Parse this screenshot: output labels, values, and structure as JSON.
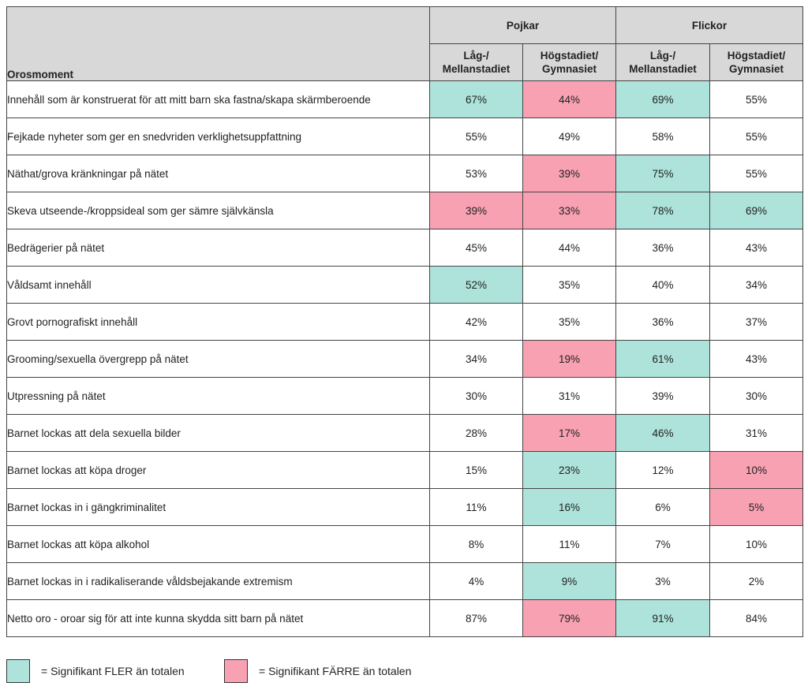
{
  "header": {
    "orosmoment": "Orosmoment",
    "groups": [
      "Pojkar",
      "Flickor"
    ],
    "subheaders": [
      [
        "Låg-/",
        "Mellanstadiet"
      ],
      [
        "Högstadiet/",
        "Gymnasiet"
      ],
      [
        "Låg-/",
        "Mellanstadiet"
      ],
      [
        "Högstadiet/",
        "Gymnasiet"
      ]
    ]
  },
  "colors": {
    "more": "#ade3da",
    "fewer": "#f7a1b2"
  },
  "rows": [
    {
      "label": "Innehåll som är konstruerat för att mitt barn ska fastna/skapa skärmberoende",
      "values": [
        "67%",
        "44%",
        "69%",
        "55%"
      ],
      "sig": [
        "more",
        "fewer",
        "more",
        ""
      ]
    },
    {
      "label": "Fejkade nyheter som ger en snedvriden verklighetsuppfattning",
      "values": [
        "55%",
        "49%",
        "58%",
        "55%"
      ],
      "sig": [
        "",
        "",
        "",
        ""
      ]
    },
    {
      "label": "Näthat/grova kränkningar på nätet",
      "values": [
        "53%",
        "39%",
        "75%",
        "55%"
      ],
      "sig": [
        "",
        "fewer",
        "more",
        ""
      ]
    },
    {
      "label": "Skeva utseende-/kroppsideal som ger sämre självkänsla",
      "values": [
        "39%",
        "33%",
        "78%",
        "69%"
      ],
      "sig": [
        "fewer",
        "fewer",
        "more",
        "more"
      ]
    },
    {
      "label": "Bedrägerier på nätet",
      "values": [
        "45%",
        "44%",
        "36%",
        "43%"
      ],
      "sig": [
        "",
        "",
        "",
        ""
      ]
    },
    {
      "label": "Våldsamt innehåll",
      "values": [
        "52%",
        "35%",
        "40%",
        "34%"
      ],
      "sig": [
        "more",
        "",
        "",
        ""
      ]
    },
    {
      "label": "Grovt pornografiskt innehåll",
      "values": [
        "42%",
        "35%",
        "36%",
        "37%"
      ],
      "sig": [
        "",
        "",
        "",
        ""
      ]
    },
    {
      "label": "Grooming/sexuella övergrepp på nätet",
      "values": [
        "34%",
        "19%",
        "61%",
        "43%"
      ],
      "sig": [
        "",
        "fewer",
        "more",
        ""
      ]
    },
    {
      "label": "Utpressning på nätet",
      "values": [
        "30%",
        "31%",
        "39%",
        "30%"
      ],
      "sig": [
        "",
        "",
        "",
        ""
      ]
    },
    {
      "label": "Barnet lockas att dela sexuella bilder",
      "values": [
        "28%",
        "17%",
        "46%",
        "31%"
      ],
      "sig": [
        "",
        "fewer",
        "more",
        ""
      ]
    },
    {
      "label": "Barnet lockas att köpa droger",
      "values": [
        "15%",
        "23%",
        "12%",
        "10%"
      ],
      "sig": [
        "",
        "more",
        "",
        "fewer"
      ]
    },
    {
      "label": "Barnet lockas in i gängkriminalitet",
      "values": [
        "11%",
        "16%",
        "6%",
        "5%"
      ],
      "sig": [
        "",
        "more",
        "",
        "fewer"
      ]
    },
    {
      "label": "Barnet lockas att köpa alkohol",
      "values": [
        "8%",
        "11%",
        "7%",
        "10%"
      ],
      "sig": [
        "",
        "",
        "",
        ""
      ]
    },
    {
      "label": "Barnet lockas in i radikaliserande våldsbejakande extremism",
      "values": [
        "4%",
        "9%",
        "3%",
        "2%"
      ],
      "sig": [
        "",
        "more",
        "",
        ""
      ]
    },
    {
      "label": "Netto oro - oroar sig för att inte kunna skydda sitt barn på nätet",
      "values": [
        "87%",
        "79%",
        "91%",
        "84%"
      ],
      "sig": [
        "",
        "fewer",
        "more",
        ""
      ]
    }
  ],
  "legend": {
    "more": "= Signifikant FLER än totalen",
    "fewer": "= Signifikant FÄRRE än totalen"
  }
}
